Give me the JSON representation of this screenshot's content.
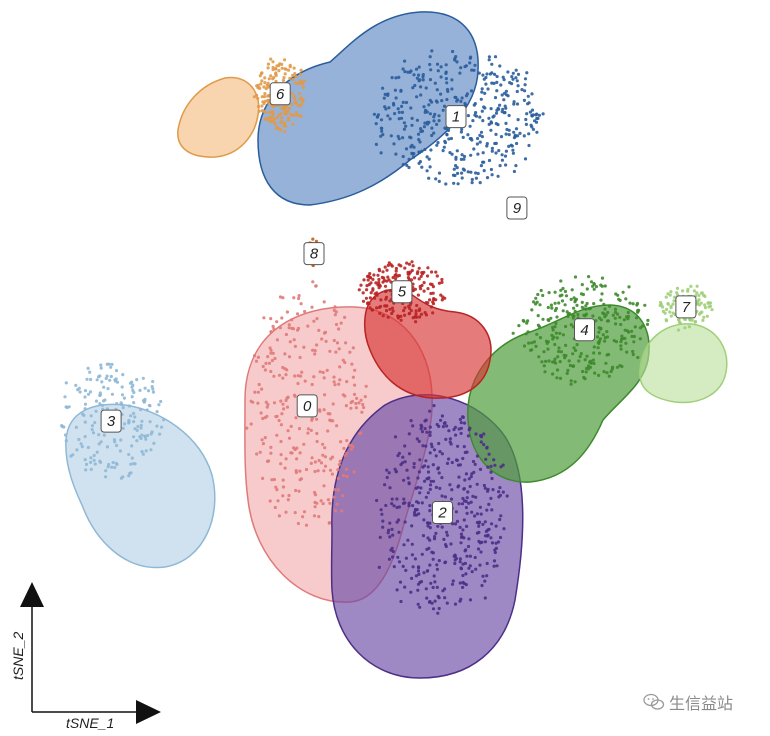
{
  "chart_data": {
    "type": "scatter",
    "xlabel": "tSNE_1",
    "ylabel": "tSNE_2",
    "grid": false,
    "legend": "none",
    "clusters": [
      {
        "label": "0",
        "color": "#f0a0a0",
        "stroke": "#e07a7a",
        "center": [
          -14,
          -4
        ],
        "spread": [
          9,
          17
        ],
        "n": 300
      },
      {
        "label": "1",
        "color": "#3f73b8",
        "stroke": "#2a5d9c",
        "center": [
          8,
          34
        ],
        "spread": [
          13,
          9
        ],
        "n": 420
      },
      {
        "label": "2",
        "color": "#6a4aa6",
        "stroke": "#4c2f87",
        "center": [
          6,
          -18
        ],
        "spread": [
          10,
          14
        ],
        "n": 430
      },
      {
        "label": "3",
        "color": "#a9cbe2",
        "stroke": "#8fb8d6",
        "center": [
          -43,
          -6
        ],
        "spread": [
          8,
          8
        ],
        "n": 200
      },
      {
        "label": "4",
        "color": "#4f9d3a",
        "stroke": "#3d8a2c",
        "center": [
          27,
          6
        ],
        "spread": [
          10,
          7
        ],
        "n": 300
      },
      {
        "label": "5",
        "color": "#d93434",
        "stroke": "#b82424",
        "center": [
          0,
          11
        ],
        "spread": [
          7,
          4
        ],
        "n": 200
      },
      {
        "label": "6",
        "color": "#f2b36b",
        "stroke": "#e09a4a",
        "center": [
          -18,
          37
        ],
        "spread": [
          4,
          5
        ],
        "n": 180
      },
      {
        "label": "7",
        "color": "#b9df9a",
        "stroke": "#9fcf78",
        "center": [
          42,
          9
        ],
        "spread": [
          4,
          3
        ],
        "n": 110
      },
      {
        "label": "8",
        "color": "#e8731f",
        "stroke": "#c95e12",
        "center": [
          -13,
          16
        ],
        "spread": [
          1,
          2
        ],
        "n": 30
      },
      {
        "label": "9",
        "color": "#b7a8d8",
        "stroke": "#9d8bc8",
        "center": [
          17,
          22
        ],
        "spread": [
          1,
          1
        ],
        "n": 6
      }
    ]
  },
  "watermark": {
    "text": "生信益站",
    "icon": "wechat-icon"
  }
}
